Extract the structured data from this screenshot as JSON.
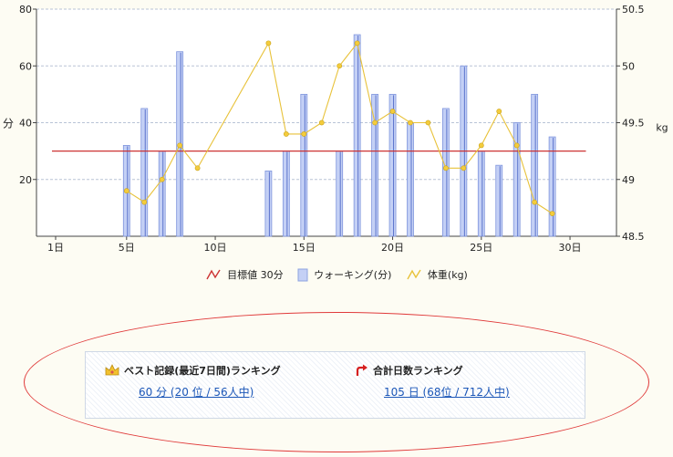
{
  "chart_data": {
    "type": "bar+line",
    "x_ticks": [
      "1日",
      "5日",
      "10日",
      "15日",
      "20日",
      "25日",
      "30日"
    ],
    "y_left": {
      "label": "分",
      "range": [
        0,
        80
      ],
      "ticks": [
        "20",
        "40",
        "60",
        "80"
      ]
    },
    "y_right": {
      "label": "kg",
      "range": [
        48.5,
        50.5
      ],
      "ticks": [
        "48.5",
        "49",
        "49.5",
        "50",
        "50.5"
      ]
    },
    "grid": true,
    "series": [
      {
        "name": "目標値 30分",
        "type": "line",
        "axis": "left",
        "color": "#cc3333",
        "value": 30,
        "x_range": [
          1,
          31
        ]
      },
      {
        "name": "ウォーキング(分)",
        "type": "bar",
        "axis": "left",
        "color": "#aab9ef",
        "points": [
          [
            5,
            32
          ],
          [
            6,
            45
          ],
          [
            7,
            30
          ],
          [
            8,
            65
          ],
          [
            13,
            23
          ],
          [
            14,
            30
          ],
          [
            15,
            50
          ],
          [
            17,
            30
          ],
          [
            18,
            71
          ],
          [
            19,
            50
          ],
          [
            20,
            50
          ],
          [
            21,
            40
          ],
          [
            23,
            45
          ],
          [
            24,
            60
          ],
          [
            25,
            30
          ],
          [
            26,
            25
          ],
          [
            27,
            40
          ],
          [
            28,
            50
          ],
          [
            29,
            35
          ]
        ]
      },
      {
        "name": "体重(kg)",
        "type": "line",
        "axis": "right",
        "color": "#e8c23a",
        "points": [
          [
            5,
            48.9
          ],
          [
            6,
            48.8
          ],
          [
            7,
            49.0
          ],
          [
            8,
            49.3
          ],
          [
            9,
            49.1
          ],
          [
            13,
            50.2
          ],
          [
            14,
            49.4
          ],
          [
            15,
            49.4
          ],
          [
            16,
            49.5
          ],
          [
            17,
            50.0
          ],
          [
            18,
            50.2
          ],
          [
            19,
            49.5
          ],
          [
            20,
            49.6
          ],
          [
            21,
            49.5
          ],
          [
            22,
            49.5
          ],
          [
            23,
            49.1
          ],
          [
            24,
            49.1
          ],
          [
            25,
            49.3
          ],
          [
            26,
            49.6
          ],
          [
            27,
            49.3
          ],
          [
            28,
            48.8
          ],
          [
            29,
            48.7
          ]
        ]
      }
    ]
  },
  "legend": {
    "goal": "目標値 30分",
    "walking": "ウォーキング(分)",
    "weight": "体重(kg)"
  },
  "ranking": {
    "best": {
      "title": "ベスト記録(最近7日間)ランキング",
      "value": "60 分 (20 位 / 56人中)"
    },
    "total": {
      "title": "合計日数ランキング",
      "value": "105 日 (68位 / 712人中)"
    }
  }
}
